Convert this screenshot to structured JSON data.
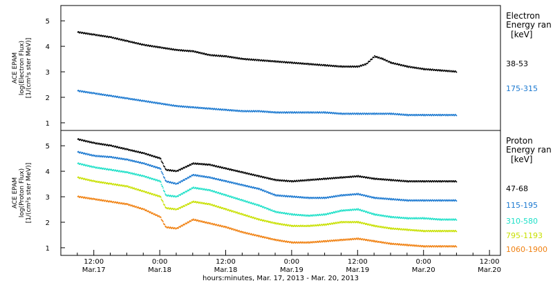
{
  "chart_data": {
    "type": "scatter",
    "xlabel": "hours:minutes, Mar. 17, 2013 - Mar. 20, 2013",
    "x_range_hours": [
      6,
      86
    ],
    "x_ticks": [
      {
        "time": "12:00",
        "date": "Mar.17",
        "hour": 12
      },
      {
        "time": "0:00",
        "date": "Mar.18",
        "hour": 24
      },
      {
        "time": "12:00",
        "date": "Mar.18",
        "hour": 36
      },
      {
        "time": "0:00",
        "date": "Mar.19",
        "hour": 48
      },
      {
        "time": "12:00",
        "date": "Mar.19",
        "hour": 60
      },
      {
        "time": "0:00",
        "date": "Mar.20",
        "hour": 72
      },
      {
        "time": "12:00",
        "date": "Mar.20",
        "hour": 84
      }
    ],
    "panels": [
      {
        "name": "electron",
        "ylabel_main": "ACE EPAM",
        "ylabel_sub": "log(Electron Flux)",
        "ylabel_units": "[1/(cm²s ster MeV)]",
        "ylim": [
          0.7,
          5.6
        ],
        "yticks": [
          1,
          2,
          3,
          4,
          5
        ],
        "legend_title_1": "Electron",
        "legend_title_2": "Energy ran",
        "legend_units": "[keV]",
        "series": [
          {
            "name": "38-53",
            "color": "#000000",
            "x": [
              9,
              12,
              15,
              18,
              21,
              24,
              27,
              30,
              33,
              36,
              39,
              42,
              45,
              48,
              51,
              54,
              57,
              60,
              61.5,
              63,
              64.5,
              66,
              69,
              72,
              75,
              78
            ],
            "y": [
              4.55,
              4.45,
              4.35,
              4.2,
              4.05,
              3.95,
              3.85,
              3.8,
              3.65,
              3.6,
              3.5,
              3.45,
              3.4,
              3.35,
              3.3,
              3.25,
              3.2,
              3.2,
              3.3,
              3.6,
              3.5,
              3.35,
              3.2,
              3.1,
              3.05,
              3.0
            ]
          },
          {
            "name": "175-315",
            "color": "#1a78d0",
            "x": [
              9,
              12,
              15,
              18,
              21,
              24,
              27,
              30,
              33,
              36,
              39,
              42,
              45,
              48,
              51,
              54,
              57,
              60,
              63,
              66,
              69,
              72,
              75,
              78
            ],
            "y": [
              2.25,
              2.15,
              2.05,
              1.95,
              1.85,
              1.75,
              1.65,
              1.6,
              1.55,
              1.5,
              1.45,
              1.45,
              1.4,
              1.4,
              1.4,
              1.4,
              1.35,
              1.35,
              1.35,
              1.35,
              1.3,
              1.3,
              1.3,
              1.3
            ]
          }
        ]
      },
      {
        "name": "proton",
        "ylabel_main": "ACE EPAM",
        "ylabel_sub": "log(Proton Flux)",
        "ylabel_units": "[1/(cm²s ster MeV)]",
        "ylim": [
          0.7,
          5.6
        ],
        "yticks": [
          1,
          2,
          3,
          4,
          5
        ],
        "legend_title_1": "Proton",
        "legend_title_2": "Energy ran",
        "legend_units": "[keV]",
        "series": [
          {
            "name": "47-68",
            "color": "#000000",
            "x": [
              9,
              12,
              15,
              18,
              21,
              24,
              25,
              27,
              30,
              33,
              36,
              39,
              42,
              45,
              48,
              51,
              54,
              57,
              60,
              63,
              66,
              69,
              72,
              75,
              78
            ],
            "y": [
              5.25,
              5.1,
              5.0,
              4.85,
              4.7,
              4.5,
              4.05,
              4.0,
              4.3,
              4.25,
              4.1,
              3.95,
              3.8,
              3.65,
              3.6,
              3.65,
              3.7,
              3.75,
              3.8,
              3.7,
              3.65,
              3.6,
              3.6,
              3.6,
              3.6
            ]
          },
          {
            "name": "115-195",
            "color": "#1a78d0",
            "x": [
              9,
              12,
              15,
              18,
              21,
              24,
              25,
              27,
              30,
              33,
              36,
              39,
              42,
              45,
              48,
              51,
              54,
              57,
              60,
              63,
              66,
              69,
              72,
              75,
              78
            ],
            "y": [
              4.75,
              4.6,
              4.55,
              4.45,
              4.3,
              4.1,
              3.6,
              3.5,
              3.85,
              3.75,
              3.6,
              3.45,
              3.3,
              3.05,
              3.0,
              2.95,
              2.95,
              3.05,
              3.1,
              2.95,
              2.9,
              2.85,
              2.85,
              2.85,
              2.85
            ]
          },
          {
            "name": "310-580",
            "color": "#1ee0c8",
            "x": [
              9,
              12,
              15,
              18,
              21,
              24,
              25,
              27,
              30,
              33,
              36,
              39,
              42,
              45,
              48,
              51,
              54,
              57,
              60,
              63,
              66,
              69,
              72,
              75,
              78
            ],
            "y": [
              4.3,
              4.15,
              4.05,
              3.95,
              3.8,
              3.6,
              3.05,
              3.0,
              3.35,
              3.25,
              3.05,
              2.85,
              2.65,
              2.4,
              2.3,
              2.25,
              2.3,
              2.45,
              2.5,
              2.3,
              2.2,
              2.15,
              2.15,
              2.1,
              2.1
            ]
          },
          {
            "name": "795-1193",
            "color": "#c8e000",
            "x": [
              9,
              12,
              15,
              18,
              21,
              24,
              25,
              27,
              30,
              33,
              36,
              39,
              42,
              45,
              48,
              51,
              54,
              57,
              60,
              63,
              66,
              69,
              72,
              75,
              78
            ],
            "y": [
              3.75,
              3.6,
              3.5,
              3.4,
              3.2,
              3.0,
              2.55,
              2.5,
              2.8,
              2.7,
              2.5,
              2.3,
              2.1,
              1.95,
              1.85,
              1.85,
              1.9,
              2.0,
              2.0,
              1.85,
              1.75,
              1.7,
              1.65,
              1.65,
              1.65
            ]
          },
          {
            "name": "1060-1900",
            "color": "#f08010",
            "x": [
              9,
              12,
              15,
              18,
              21,
              24,
              25,
              27,
              30,
              33,
              36,
              39,
              42,
              45,
              48,
              51,
              54,
              57,
              60,
              63,
              66,
              69,
              72,
              75,
              78
            ],
            "y": [
              3.0,
              2.9,
              2.8,
              2.7,
              2.5,
              2.2,
              1.8,
              1.75,
              2.1,
              1.95,
              1.8,
              1.6,
              1.45,
              1.3,
              1.2,
              1.2,
              1.25,
              1.3,
              1.35,
              1.25,
              1.15,
              1.1,
              1.05,
              1.05,
              1.05
            ]
          }
        ]
      }
    ]
  }
}
